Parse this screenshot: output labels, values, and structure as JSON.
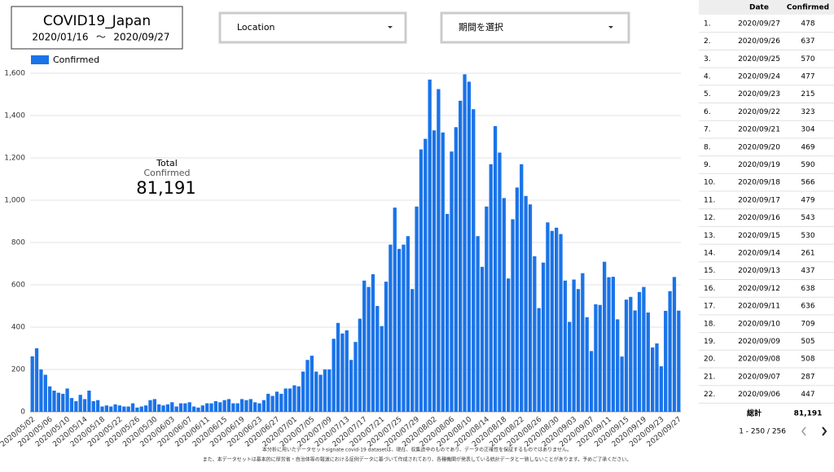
{
  "header": {
    "title": "COVID19_Japan",
    "start_date": "2020/01/16",
    "separator": "〜",
    "end_date": "2020/09/27"
  },
  "controls": {
    "location": "Location",
    "period": "期間を選択"
  },
  "scorecard": {
    "label1": "Total",
    "label2": "Confirmed",
    "value": "81,191"
  },
  "chart_data": {
    "type": "bar",
    "color": "#1a73e8",
    "grid": true,
    "legend": "top-left",
    "series": [
      {
        "name": "Confirmed",
        "color": "#1a73e8",
        "values": [
          262,
          300,
          200,
          175,
          120,
          100,
          90,
          85,
          110,
          65,
          50,
          80,
          60,
          100,
          50,
          55,
          25,
          30,
          25,
          35,
          30,
          25,
          25,
          40,
          20,
          25,
          30,
          55,
          60,
          35,
          30,
          35,
          45,
          25,
          40,
          40,
          45,
          25,
          20,
          30,
          40,
          40,
          50,
          45,
          55,
          60,
          40,
          40,
          60,
          55,
          60,
          45,
          40,
          55,
          85,
          75,
          95,
          85,
          110,
          110,
          125,
          120,
          190,
          245,
          265,
          190,
          175,
          200,
          200,
          345,
          420,
          370,
          385,
          245,
          330,
          440,
          620,
          590,
          650,
          500,
          405,
          615,
          790,
          965,
          770,
          790,
          830,
          580,
          970,
          1240,
          1290,
          1570,
          1330,
          1525,
          1320,
          935,
          1230,
          1345,
          1470,
          1595,
          1560,
          1430,
          830,
          685,
          970,
          1170,
          1350,
          1225,
          1010,
          630,
          910,
          1060,
          1170,
          1020,
          980,
          735,
          490,
          705,
          895,
          855,
          870,
          840,
          620,
          425,
          625,
          580,
          655,
          447,
          287,
          508,
          505,
          709,
          636,
          638,
          437,
          261,
          530,
          543,
          479,
          566,
          590,
          469,
          304,
          323,
          215,
          477,
          570,
          637,
          478
        ]
      }
    ],
    "categories": [
      "2020/05/02",
      null,
      null,
      null,
      "2020/05/06",
      null,
      null,
      null,
      "2020/05/10",
      null,
      null,
      null,
      "2020/05/14",
      null,
      null,
      null,
      "2020/05/18",
      null,
      null,
      null,
      "2020/05/22",
      null,
      null,
      null,
      "2020/05/26",
      null,
      null,
      null,
      "2020/05/30",
      null,
      null,
      null,
      "2020/06/03",
      null,
      null,
      null,
      "2020/06/07",
      null,
      null,
      null,
      "2020/06/11",
      null,
      null,
      null,
      "2020/06/15",
      null,
      null,
      null,
      "2020/06/19",
      null,
      null,
      null,
      "2020/06/23",
      null,
      null,
      null,
      "2020/06/27",
      null,
      null,
      null,
      "2020/07/01",
      null,
      null,
      null,
      "2020/07/05",
      null,
      null,
      null,
      "2020/07/09",
      null,
      null,
      null,
      "2020/07/13",
      null,
      null,
      null,
      "2020/07/17",
      null,
      null,
      null,
      "2020/07/21",
      null,
      null,
      null,
      "2020/07/25",
      null,
      null,
      null,
      "2020/07/29",
      null,
      null,
      null,
      "2020/08/02",
      null,
      null,
      null,
      "2020/08/06",
      null,
      null,
      null,
      "2020/08/10",
      null,
      null,
      null,
      "2020/08/14",
      null,
      null,
      null,
      "2020/08/18",
      null,
      null,
      null,
      "2020/08/22",
      null,
      null,
      null,
      "2020/08/26",
      null,
      null,
      null,
      "2020/08/30",
      null,
      null,
      null,
      "2020/09/03",
      null,
      null,
      null,
      "2020/09/07",
      null,
      null,
      null,
      "2020/09/11",
      null,
      null,
      null,
      "2020/09/15",
      null,
      null,
      null,
      "2020/09/19",
      null,
      null,
      null,
      "2020/09/23",
      null,
      null,
      null,
      "2020/09/27"
    ],
    "ylim": [
      0,
      1600
    ],
    "yticks": [
      0,
      200,
      400,
      600,
      800,
      {
        "value": 1000,
        "label": "1,000"
      },
      {
        "value": 1200,
        "label": "1,200"
      },
      {
        "value": 1400,
        "label": "1,400"
      },
      {
        "value": 1600,
        "label": "1,600"
      }
    ]
  },
  "table": {
    "columns": [
      "Date",
      "Confirmed"
    ],
    "rows": [
      [
        "1.",
        "2020/09/27",
        478
      ],
      [
        "2.",
        "2020/09/26",
        637
      ],
      [
        "3.",
        "2020/09/25",
        570
      ],
      [
        "4.",
        "2020/09/24",
        477
      ],
      [
        "5.",
        "2020/09/23",
        215
      ],
      [
        "6.",
        "2020/09/22",
        323
      ],
      [
        "7.",
        "2020/09/21",
        304
      ],
      [
        "8.",
        "2020/09/20",
        469
      ],
      [
        "9.",
        "2020/09/19",
        590
      ],
      [
        "10.",
        "2020/09/18",
        566
      ],
      [
        "11.",
        "2020/09/17",
        479
      ],
      [
        "12.",
        "2020/09/16",
        543
      ],
      [
        "13.",
        "2020/09/15",
        530
      ],
      [
        "14.",
        "2020/09/14",
        261
      ],
      [
        "15.",
        "2020/09/13",
        437
      ],
      [
        "16.",
        "2020/09/12",
        638
      ],
      [
        "17.",
        "2020/09/11",
        636
      ],
      [
        "18.",
        "2020/09/10",
        709
      ],
      [
        "19.",
        "2020/09/09",
        505
      ],
      [
        "20.",
        "2020/09/08",
        508
      ],
      [
        "21.",
        "2020/09/07",
        287
      ],
      [
        "22.",
        "2020/09/06",
        447
      ]
    ],
    "total_label": "総計",
    "total_value": "81,191",
    "pagination": "1 - 250 / 256"
  },
  "notes": [
    "本分析に用いたデータセットsignate covid-19 datasetは、現在、収集途中のものであり、データの正確性を保証するものではありません。",
    "また、本データセットは基本的に厚労省・自治体等の報道における症例データに基づいて作成されており、各種機関が発表している統計データと一致しないことがあります。予めご了承ください。"
  ]
}
